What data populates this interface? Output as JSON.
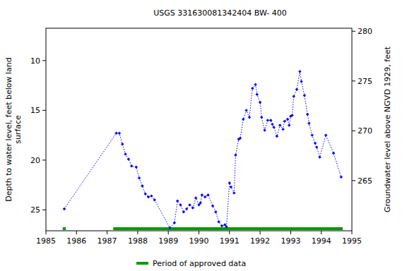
{
  "chart_data": {
    "type": "scatter",
    "title": "USGS 331630081342404 BW- 400",
    "y_label": [
      "Depth to water level, feet below land",
      "surface"
    ],
    "y2_label": "Groundwater level above NGVD 1929, feet",
    "xlim": [
      1985,
      1995
    ],
    "xticks": [
      1985,
      1986,
      1987,
      1988,
      1989,
      1990,
      1991,
      1992,
      1993,
      1994,
      1995
    ],
    "ylim": [
      27.1,
      6.75
    ],
    "yticks": [
      10,
      15,
      20,
      25
    ],
    "y2lim": [
      259.96,
      280.3
    ],
    "y2ticks": [
      265,
      270,
      275,
      280
    ],
    "grid": false,
    "series": [
      {
        "name": "Depth to water level",
        "color": "#0000ff",
        "marker": "diamond",
        "line_style": "dotted",
        "x": [
          1985.6,
          1987.3,
          1987.4,
          1987.5,
          1987.6,
          1987.7,
          1987.8,
          1987.95,
          1988.05,
          1988.15,
          1988.25,
          1988.35,
          1988.45,
          1988.55,
          1989.05,
          1989.2,
          1989.3,
          1989.4,
          1989.5,
          1989.6,
          1989.7,
          1989.8,
          1989.9,
          1990.0,
          1990.05,
          1990.1,
          1990.2,
          1990.3,
          1990.45,
          1990.55,
          1990.65,
          1990.75,
          1990.85,
          1990.9,
          1991.0,
          1991.05,
          1991.15,
          1991.2,
          1991.3,
          1991.35,
          1991.45,
          1991.55,
          1991.65,
          1991.75,
          1991.85,
          1991.9,
          1992.0,
          1992.05,
          1992.15,
          1992.25,
          1992.35,
          1992.4,
          1992.45,
          1992.55,
          1992.65,
          1992.75,
          1992.8,
          1992.9,
          1992.95,
          1993.0,
          1993.05,
          1993.1,
          1993.2,
          1993.3,
          1993.35,
          1993.45,
          1993.55,
          1993.6,
          1993.7,
          1993.8,
          1993.85,
          1993.95,
          1994.15,
          1994.4,
          1994.65
        ],
        "values": [
          24.9,
          17.3,
          17.3,
          18.4,
          19.4,
          19.9,
          20.6,
          20.7,
          21.8,
          22.6,
          23.4,
          23.7,
          23.6,
          24.0,
          26.8,
          26.3,
          24.1,
          24.5,
          25.2,
          24.9,
          24.5,
          24.8,
          23.8,
          24.5,
          24.3,
          23.5,
          23.7,
          23.5,
          24.6,
          25.2,
          26.2,
          26.6,
          26.5,
          26.7,
          22.3,
          22.7,
          23.3,
          19.5,
          17.9,
          17.8,
          15.9,
          15.0,
          15.7,
          12.8,
          12.4,
          13.4,
          14.2,
          15.7,
          17.0,
          16.0,
          16.0,
          16.4,
          16.7,
          17.6,
          16.5,
          16.9,
          16.1,
          15.9,
          16.5,
          15.6,
          15.5,
          13.6,
          12.9,
          11.1,
          12.1,
          13.5,
          15.4,
          16.3,
          17.5,
          18.3,
          18.7,
          19.7,
          17.5,
          19.3,
          21.7
        ]
      }
    ],
    "approved_data": {
      "name": "Period of approved data",
      "color": "#009900",
      "periods": [
        [
          1985.55,
          1985.65
        ],
        [
          1987.2,
          1994.7
        ]
      ]
    }
  }
}
